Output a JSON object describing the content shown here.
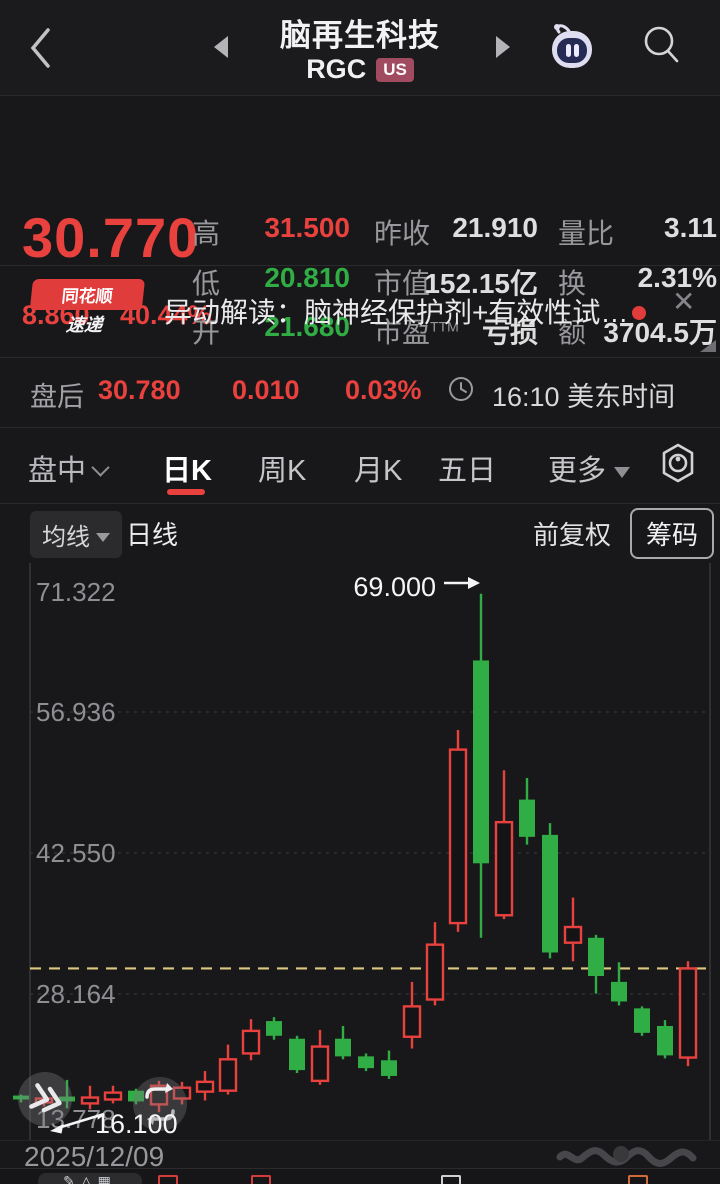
{
  "navbar": {
    "title": "脑再生科技",
    "code": "RGC",
    "market_badge": "US"
  },
  "quote": {
    "price": "30.770",
    "change": "8.860",
    "change_pct": "40.44%",
    "high_label": "高",
    "high": "31.500",
    "low_label": "低",
    "low": "20.810",
    "open_label": "开",
    "open": "21.680",
    "prev_label": "昨收",
    "prev": "21.910",
    "mcap_label": "市值",
    "mcap": "152.15亿",
    "pe_label": "市盈",
    "pe_ttm": "TTM",
    "pe": "亏损",
    "vol_ratio_label": "量比",
    "vol_ratio": "3.11",
    "turnover_label": "换",
    "turnover": "2.31%",
    "amount_label": "额",
    "amount": "3704.5万"
  },
  "news": {
    "badge_line1": "同花顺",
    "badge_line2": "速递",
    "text": "异动解读：脑神经保护剂+有效性试…",
    "close_glyph": "✕"
  },
  "after_hours": {
    "label": "盘后",
    "price": "30.780",
    "change": "0.010",
    "pct": "0.03%",
    "time": "16:10 美东时间"
  },
  "tabs": {
    "items": [
      "盘中",
      "日K",
      "周K",
      "月K",
      "五日",
      "更多"
    ],
    "active": "日K"
  },
  "chart_toolbar": {
    "ma": "均线",
    "period": "日线",
    "adjust": "前复权",
    "chips": "筹码"
  },
  "chart_data": {
    "type": "candlestick",
    "title": "RGC 日K",
    "y_axis_labels": [
      "71.322",
      "56.936",
      "42.550",
      "28.164",
      "13.778"
    ],
    "price_line": 30.77,
    "annotation_high": "69.000",
    "annotation_low": "16.100",
    "colors": {
      "up": "#e8413e",
      "down": "#30ad44",
      "price_line": "#dcc87e",
      "grid": "#3c3c3e",
      "axis_text": "#8f8f93"
    },
    "candles": [
      {
        "o": 17.8,
        "h": 17.9,
        "l": 17.1,
        "c": 17.4
      },
      {
        "o": 17.1,
        "h": 18.2,
        "l": 16.7,
        "c": 17.5
      },
      {
        "o": 17.7,
        "h": 19.4,
        "l": 16.5,
        "c": 17.2
      },
      {
        "o": 17.0,
        "h": 18.8,
        "l": 16.4,
        "c": 17.6
      },
      {
        "o": 17.4,
        "h": 18.8,
        "l": 17.0,
        "c": 18.1
      },
      {
        "o": 18.3,
        "h": 18.5,
        "l": 16.9,
        "c": 17.2
      },
      {
        "o": 16.9,
        "h": 19.3,
        "l": 16.1,
        "c": 18.8
      },
      {
        "o": 17.5,
        "h": 19.2,
        "l": 16.9,
        "c": 18.6
      },
      {
        "o": 18.2,
        "h": 20.3,
        "l": 17.3,
        "c": 19.2
      },
      {
        "o": 18.3,
        "h": 23.0,
        "l": 17.9,
        "c": 21.5
      },
      {
        "o": 22.1,
        "h": 25.6,
        "l": 21.4,
        "c": 24.4
      },
      {
        "o": 25.4,
        "h": 25.8,
        "l": 23.5,
        "c": 23.9
      },
      {
        "o": 23.6,
        "h": 23.9,
        "l": 20.1,
        "c": 20.4
      },
      {
        "o": 19.3,
        "h": 24.5,
        "l": 18.9,
        "c": 22.8
      },
      {
        "o": 23.6,
        "h": 24.9,
        "l": 21.5,
        "c": 21.8
      },
      {
        "o": 21.8,
        "h": 22.1,
        "l": 20.3,
        "c": 20.6
      },
      {
        "o": 21.4,
        "h": 22.4,
        "l": 19.5,
        "c": 19.8
      },
      {
        "o": 23.8,
        "h": 29.4,
        "l": 22.6,
        "c": 26.9
      },
      {
        "o": 27.6,
        "h": 35.5,
        "l": 27.0,
        "c": 33.2
      },
      {
        "o": 35.4,
        "h": 55.1,
        "l": 34.5,
        "c": 53.1
      },
      {
        "o": 62.2,
        "h": 69.0,
        "l": 33.9,
        "c": 41.5
      },
      {
        "o": 36.2,
        "h": 51.0,
        "l": 35.8,
        "c": 45.7
      },
      {
        "o": 48.0,
        "h": 50.2,
        "l": 43.4,
        "c": 44.2
      },
      {
        "o": 44.4,
        "h": 45.6,
        "l": 31.8,
        "c": 32.4
      },
      {
        "o": 33.4,
        "h": 38.0,
        "l": 31.5,
        "c": 35.0
      },
      {
        "o": 33.9,
        "h": 34.2,
        "l": 28.2,
        "c": 30.0
      },
      {
        "o": 29.4,
        "h": 31.4,
        "l": 27.0,
        "c": 27.4
      },
      {
        "o": 26.7,
        "h": 26.9,
        "l": 23.9,
        "c": 24.2
      },
      {
        "o": 24.9,
        "h": 25.5,
        "l": 21.6,
        "c": 21.9
      },
      {
        "o": 21.68,
        "h": 31.5,
        "l": 20.81,
        "c": 30.77
      }
    ]
  },
  "footer": {
    "date": "2025/12/09"
  }
}
